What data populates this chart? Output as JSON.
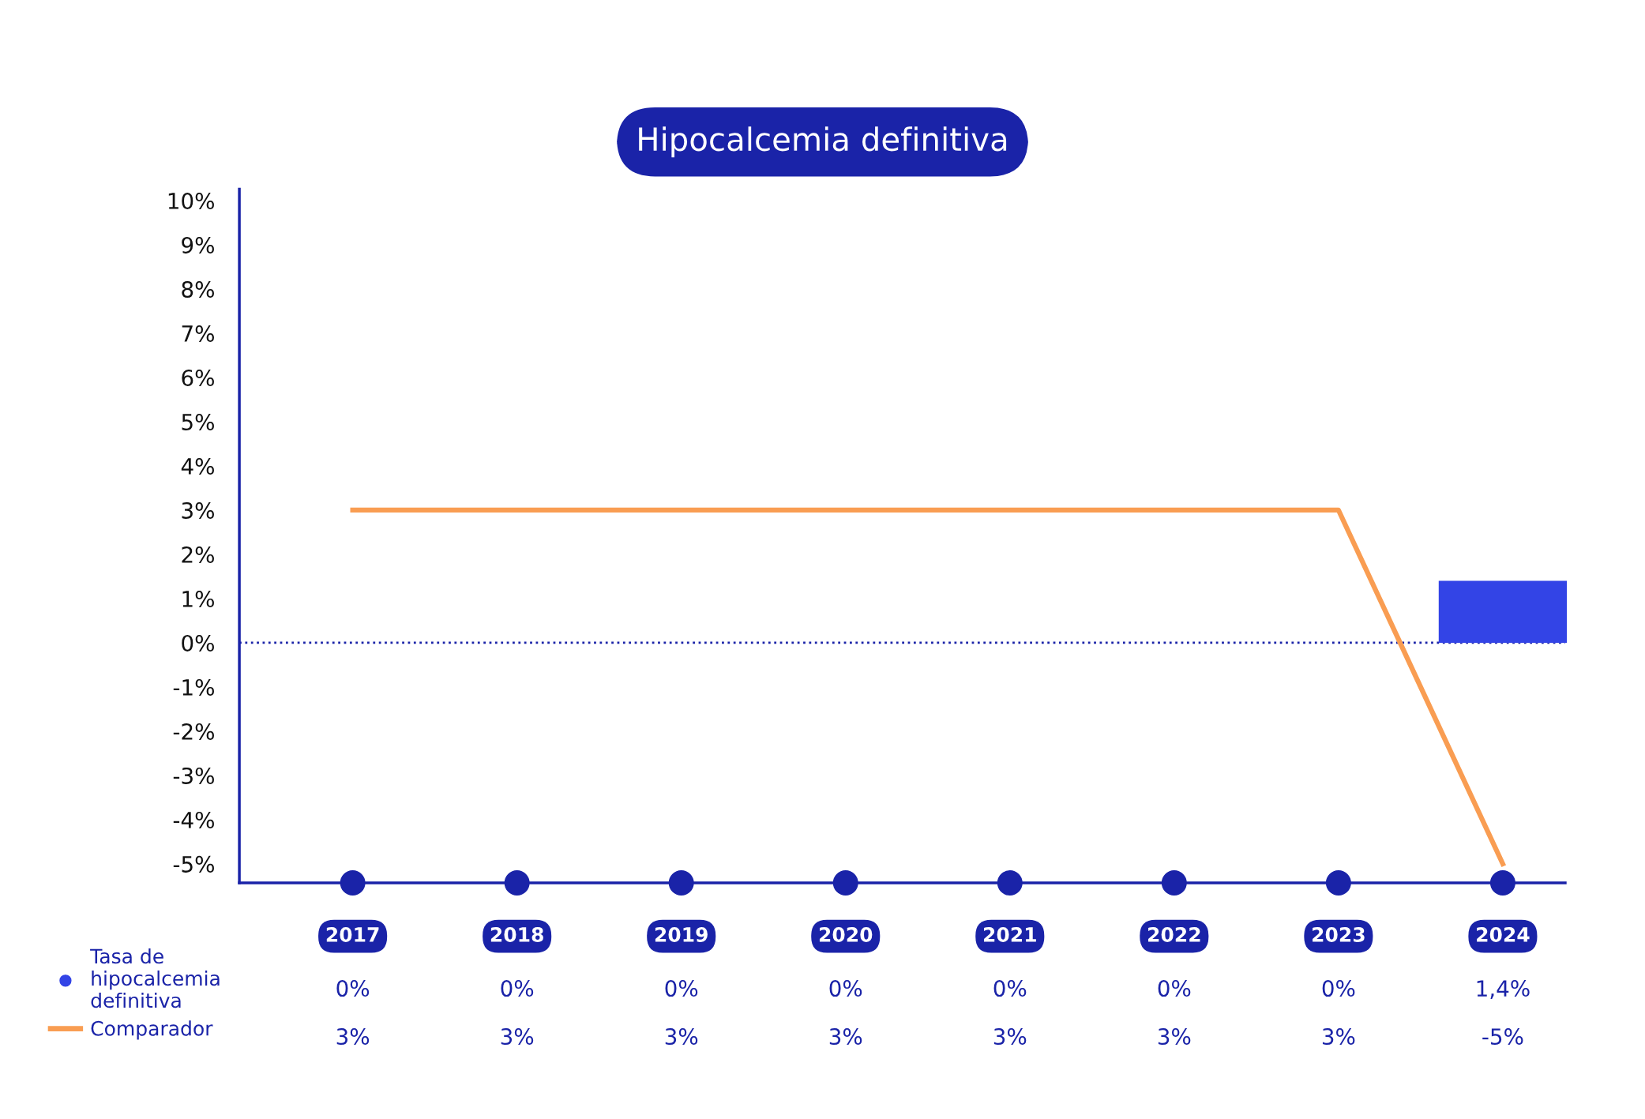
{
  "chart_data": {
    "type": "bar",
    "title": "Hipocalcemia definitiva",
    "categories": [
      "2017",
      "2018",
      "2019",
      "2020",
      "2021",
      "2022",
      "2023",
      "2024"
    ],
    "series": [
      {
        "name": "Tasa de\nhipocalcemia\ndefinitiva",
        "color": "#3344e6",
        "values": [
          0,
          0,
          0,
          0,
          0,
          0,
          0,
          1.4
        ],
        "value_labels": [
          "0%",
          "0%",
          "0%",
          "0%",
          "0%",
          "0%",
          "0%",
          "1,4%"
        ]
      },
      {
        "name": "Comparador",
        "type": "line",
        "color": "#f99d52",
        "values": [
          3,
          3,
          3,
          3,
          3,
          3,
          3,
          -5
        ],
        "value_labels": [
          "3%",
          "3%",
          "3%",
          "3%",
          "3%",
          "3%",
          "3%",
          "-5%"
        ]
      }
    ],
    "ylim": [
      -5.43,
      10.26
    ],
    "yticks": [
      {
        "value": -5,
        "label": "-5%"
      },
      {
        "value": -4,
        "label": "-4%"
      },
      {
        "value": -3,
        "label": "-3%"
      },
      {
        "value": -2,
        "label": "-2%"
      },
      {
        "value": -1,
        "label": "-1%"
      },
      {
        "value": 0,
        "label": "0%"
      },
      {
        "value": 1,
        "label": "1%"
      },
      {
        "value": 2,
        "label": "2%"
      },
      {
        "value": 3,
        "label": "3%"
      },
      {
        "value": 4,
        "label": "4%"
      },
      {
        "value": 5,
        "label": "5%"
      },
      {
        "value": 6,
        "label": "6%"
      },
      {
        "value": 7,
        "label": "7%"
      },
      {
        "value": 8,
        "label": "8%"
      },
      {
        "value": 9,
        "label": "9%"
      },
      {
        "value": 10,
        "label": "10%"
      }
    ],
    "ref_lines": [
      {
        "axis": "y",
        "value": 0,
        "color": "#1a23a8",
        "line_style": "dotted"
      }
    ],
    "grid": false,
    "legend": "bottom left",
    "marker": "none",
    "line_style": "solid"
  }
}
